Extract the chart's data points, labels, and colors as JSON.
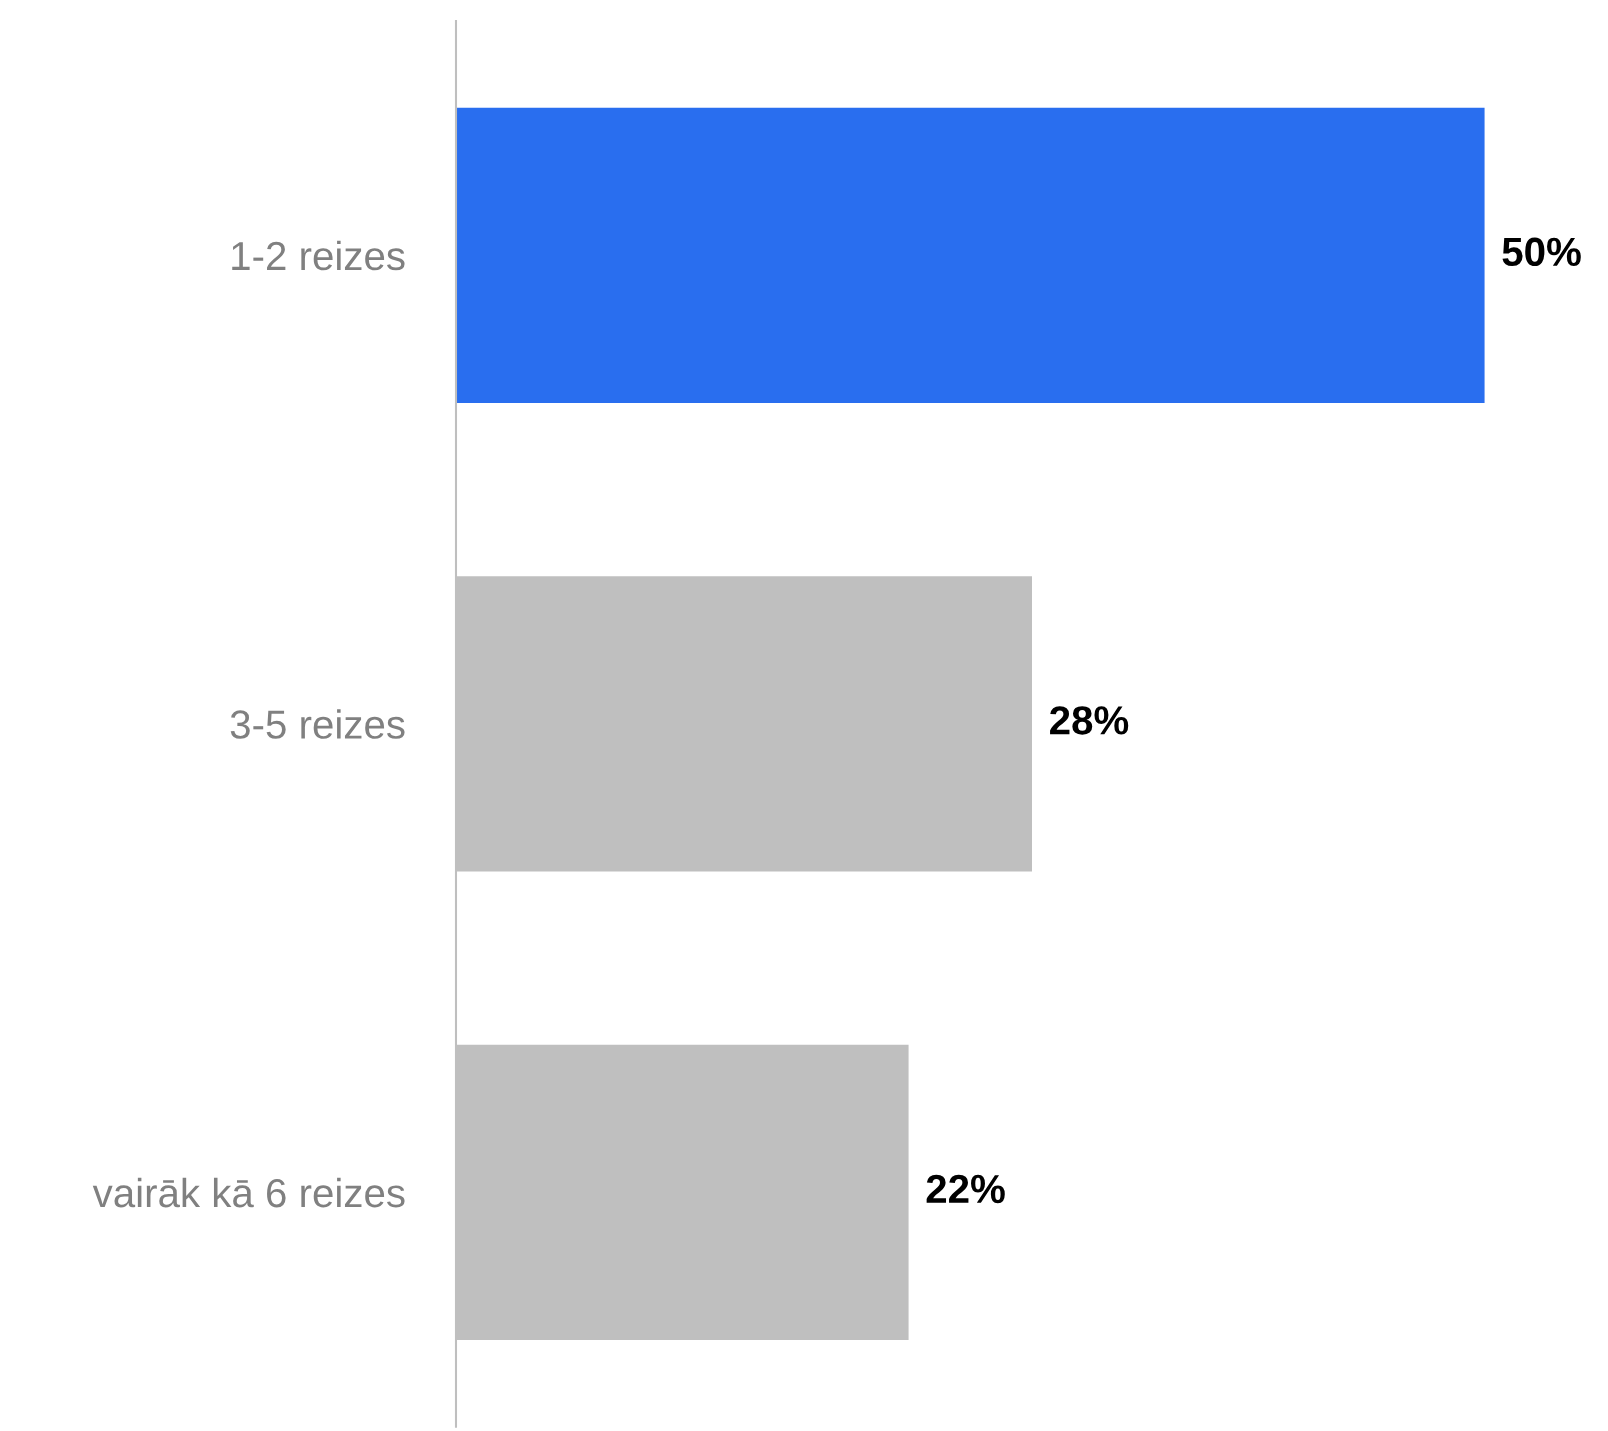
{
  "chart_data": {
    "type": "bar",
    "orientation": "horizontal",
    "categories": [
      "1-2 reizes",
      "3-5 reizes",
      "vairāk kā 6 reizes"
    ],
    "values": [
      50,
      28,
      22
    ],
    "colors": [
      "#296eef",
      "#bfbfbf",
      "#bfbfbf"
    ],
    "value_labels": [
      "50%",
      "28%",
      "22%"
    ],
    "grid": false,
    "legend": false
  }
}
